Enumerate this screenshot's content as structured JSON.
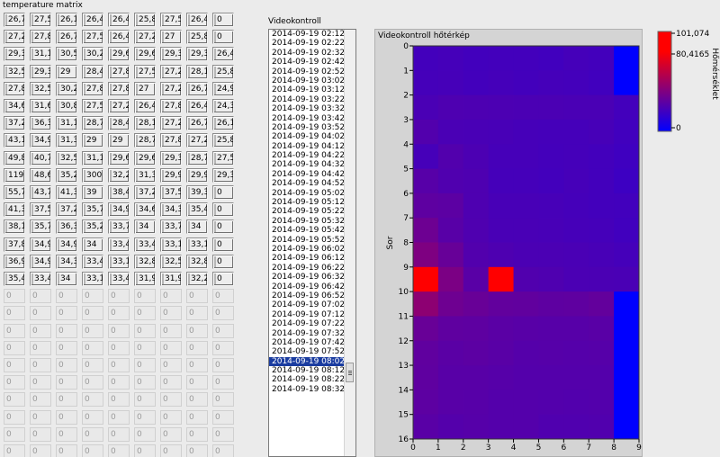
{
  "matrix": {
    "title": "temperature matrix",
    "rows": [
      [
        "26,7",
        "27,5",
        "26,1",
        "26,4",
        "26,4",
        "25,8",
        "27,5",
        "26,4",
        "0"
      ],
      [
        "27,2",
        "27,8",
        "26,7",
        "27,5",
        "26,4",
        "27,2",
        "27",
        "25,8",
        "0"
      ],
      [
        "29,3",
        "31,1",
        "30,5",
        "30,2",
        "29,6",
        "29,6",
        "29,3",
        "29,3",
        "26,4"
      ],
      [
        "32,5",
        "29,3",
        "29",
        "28,4",
        "27,8",
        "27,5",
        "27,2",
        "28,1",
        "25,8"
      ],
      [
        "27,8",
        "32,5",
        "30,2",
        "27,8",
        "27,8",
        "27",
        "27,2",
        "26,7",
        "24,9"
      ],
      [
        "34,6",
        "31,6",
        "30,8",
        "27,5",
        "27,2",
        "26,4",
        "27,8",
        "26,4",
        "24,3"
      ],
      [
        "37,2",
        "36,3",
        "31,1",
        "28,7",
        "28,4",
        "28,1",
        "27,2",
        "26,7",
        "26,1"
      ],
      [
        "43,1",
        "34,9",
        "31,3",
        "29",
        "29",
        "28,7",
        "27,8",
        "27,2",
        "25,8"
      ],
      [
        "49,8",
        "40,7",
        "32,5",
        "31,1",
        "29,6",
        "29,6",
        "29,3",
        "28,7",
        "27,5"
      ],
      [
        "119",
        "48,6",
        "35,2",
        "300",
        "32,2",
        "31,3",
        "29,9",
        "29,9",
        "29,3"
      ],
      [
        "55,7",
        "43,7",
        "41,3",
        "39",
        "38,4",
        "37,2",
        "37,5",
        "39,3",
        "0"
      ],
      [
        "41,3",
        "37,5",
        "37,2",
        "35,7",
        "34,9",
        "34,6",
        "34,3",
        "35,4",
        "0"
      ],
      [
        "38,1",
        "35,7",
        "36,3",
        "35,2",
        "33,7",
        "34",
        "33,7",
        "34",
        "0"
      ],
      [
        "37,8",
        "34,9",
        "34,9",
        "34",
        "33,4",
        "33,4",
        "33,1",
        "33,1",
        "0"
      ],
      [
        "36,9",
        "34,9",
        "34,3",
        "33,4",
        "33,1",
        "32,8",
        "32,5",
        "32,8",
        "0"
      ],
      [
        "35,4",
        "33,4",
        "34",
        "33,1",
        "33,4",
        "31,9",
        "31,9",
        "32,2",
        "0"
      ]
    ],
    "empty_value": "0",
    "empty_rows": 10
  },
  "list": {
    "title": "Videokontroll",
    "items": [
      "2014-09-19 02:12",
      "2014-09-19 02:22",
      "2014-09-19 02:32",
      "2014-09-19 02:42",
      "2014-09-19 02:52",
      "2014-09-19 03:02",
      "2014-09-19 03:12",
      "2014-09-19 03:22",
      "2014-09-19 03:32",
      "2014-09-19 03:42",
      "2014-09-19 03:52",
      "2014-09-19 04:02",
      "2014-09-19 04:12",
      "2014-09-19 04:22",
      "2014-09-19 04:32",
      "2014-09-19 04:42",
      "2014-09-19 04:52",
      "2014-09-19 05:02",
      "2014-09-19 05:12",
      "2014-09-19 05:22",
      "2014-09-19 05:32",
      "2014-09-19 05:42",
      "2014-09-19 05:52",
      "2014-09-19 06:02",
      "2014-09-19 06:12",
      "2014-09-19 06:22",
      "2014-09-19 06:32",
      "2014-09-19 06:42",
      "2014-09-19 06:52",
      "2014-09-19 07:02",
      "2014-09-19 07:12",
      "2014-09-19 07:22",
      "2014-09-19 07:32",
      "2014-09-19 07:42",
      "2014-09-19 07:52",
      "2014-09-19 08:02",
      "2014-09-19 08:12",
      "2014-09-19 08:22",
      "2014-09-19 08:32"
    ],
    "selected_index": 35
  },
  "chart_data": {
    "type": "heatmap",
    "title": "Videokontroll hőtérkép",
    "ylabel": "Sor",
    "xlabel": "",
    "x_ticks": [
      "0",
      "1",
      "2",
      "3",
      "4",
      "5",
      "6",
      "7",
      "8",
      "9"
    ],
    "y_ticks": [
      "0",
      "1",
      "2",
      "3",
      "4",
      "5",
      "6",
      "7",
      "8",
      "9",
      "10",
      "11",
      "12",
      "13",
      "14",
      "15",
      "16"
    ],
    "xlim": [
      0,
      9
    ],
    "ylim": [
      0,
      16
    ],
    "colorbar": {
      "label": "Hőmérséklet",
      "ticks": [
        "101,074",
        "80,4165",
        "0"
      ],
      "max": 101.074,
      "min": 0,
      "colors": {
        "high": "#ff0000",
        "low": "#0000ff",
        "mid": "#800080"
      }
    },
    "values": [
      [
        26.7,
        27.5,
        26.1,
        26.4,
        26.4,
        25.8,
        27.5,
        26.4,
        0
      ],
      [
        27.2,
        27.8,
        26.7,
        27.5,
        26.4,
        27.2,
        27,
        25.8,
        0
      ],
      [
        29.3,
        31.1,
        30.5,
        30.2,
        29.6,
        29.6,
        29.3,
        29.3,
        26.4
      ],
      [
        32.5,
        29.3,
        29,
        28.4,
        27.8,
        27.5,
        27.2,
        28.1,
        25.8
      ],
      [
        27.8,
        32.5,
        30.2,
        27.8,
        27.8,
        27,
        27.2,
        26.7,
        24.9
      ],
      [
        34.6,
        31.6,
        30.8,
        27.5,
        27.2,
        26.4,
        27.8,
        26.4,
        24.3
      ],
      [
        37.2,
        36.3,
        31.1,
        28.7,
        28.4,
        28.1,
        27.2,
        26.7,
        26.1
      ],
      [
        43.1,
        34.9,
        31.3,
        29,
        29,
        28.7,
        27.8,
        27.2,
        25.8
      ],
      [
        49.8,
        40.7,
        32.5,
        31.1,
        29.6,
        29.6,
        29.3,
        28.7,
        27.5
      ],
      [
        119,
        48.6,
        35.2,
        300,
        32.2,
        31.3,
        29.9,
        29.9,
        29.3
      ],
      [
        55.7,
        43.7,
        41.3,
        39,
        38.4,
        37.2,
        37.5,
        39.3,
        0
      ],
      [
        41.3,
        37.5,
        37.2,
        35.7,
        34.9,
        34.6,
        34.3,
        35.4,
        0
      ],
      [
        38.1,
        35.7,
        36.3,
        35.2,
        33.7,
        34,
        33.7,
        34,
        0
      ],
      [
        37.8,
        34.9,
        34.9,
        34,
        33.4,
        33.4,
        33.1,
        33.1,
        0
      ],
      [
        36.9,
        34.9,
        34.3,
        33.4,
        33.1,
        32.8,
        32.5,
        32.8,
        0
      ],
      [
        35.4,
        33.4,
        34,
        33.1,
        33.4,
        31.9,
        31.9,
        32.2,
        0
      ]
    ]
  }
}
